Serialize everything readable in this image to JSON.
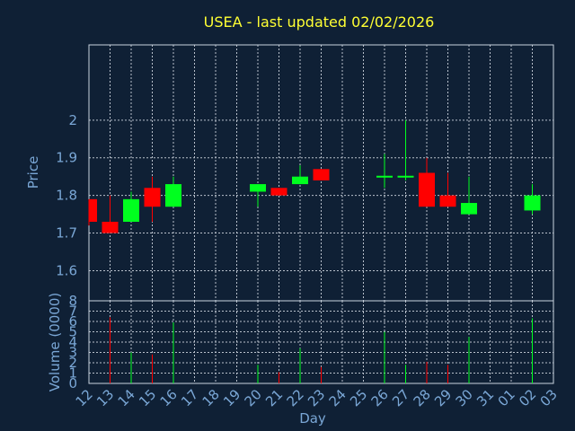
{
  "chart_data": {
    "type": "candlestick",
    "title": "USEA - last updated 02/02/2026",
    "xlabel": "Day",
    "ylabel_price": "Price",
    "ylabel_volume": "Volume (0000)",
    "x_tick_labels": [
      "12",
      "13",
      "14",
      "15",
      "16",
      "17",
      "18",
      "19",
      "20",
      "21",
      "22",
      "23",
      "24",
      "25",
      "26",
      "27",
      "28",
      "29",
      "30",
      "31",
      "01",
      "02",
      "03"
    ],
    "price_ylim": [
      1.52,
      2.2
    ],
    "price_ticks": [
      1.6,
      1.7,
      1.8,
      1.9,
      2
    ],
    "price_tick_labels": [
      "1.6",
      "1.7",
      "1.8",
      "1.9",
      "2"
    ],
    "volume_ylim": [
      0,
      8
    ],
    "volume_ticks": [
      0,
      1,
      2,
      3,
      4,
      5,
      6,
      7,
      8
    ],
    "volume_tick_labels": [
      "0",
      "1",
      "2",
      "3",
      "4",
      "5",
      "6",
      "7",
      "8"
    ],
    "grid": true,
    "colors": {
      "up": "#00ff1f",
      "down": "#ff0000",
      "background": "#0f2035",
      "grid": "#b9c1cc",
      "title": "#ffff33",
      "labels": "#7aa7d6"
    },
    "candles": [
      {
        "day": 0,
        "open": 1.79,
        "high": 1.79,
        "low": 1.72,
        "close": 1.73
      },
      {
        "day": 1,
        "open": 1.73,
        "high": 1.8,
        "low": 1.7,
        "close": 1.7
      },
      {
        "day": 2,
        "open": 1.73,
        "high": 1.81,
        "low": 1.73,
        "close": 1.79
      },
      {
        "day": 3,
        "open": 1.82,
        "high": 1.85,
        "low": 1.73,
        "close": 1.77
      },
      {
        "day": 4,
        "open": 1.77,
        "high": 1.85,
        "low": 1.77,
        "close": 1.83
      },
      {
        "day": 8,
        "open": 1.81,
        "high": 1.83,
        "low": 1.77,
        "close": 1.83
      },
      {
        "day": 9,
        "open": 1.82,
        "high": 1.82,
        "low": 1.8,
        "close": 1.8
      },
      {
        "day": 10,
        "open": 1.83,
        "high": 1.88,
        "low": 1.83,
        "close": 1.85
      },
      {
        "day": 11,
        "open": 1.87,
        "high": 1.87,
        "low": 1.84,
        "close": 1.84
      },
      {
        "day": 14,
        "open": 1.85,
        "high": 1.91,
        "low": 1.82,
        "close": 1.85
      },
      {
        "day": 15,
        "open": 1.85,
        "high": 2.0,
        "low": 1.84,
        "close": 1.85
      },
      {
        "day": 16,
        "open": 1.86,
        "high": 1.9,
        "low": 1.77,
        "close": 1.77
      },
      {
        "day": 17,
        "open": 1.8,
        "high": 1.86,
        "low": 1.77,
        "close": 1.77
      },
      {
        "day": 18,
        "open": 1.75,
        "high": 1.85,
        "low": 1.75,
        "close": 1.78
      },
      {
        "day": 21,
        "open": 1.76,
        "high": 1.83,
        "low": 1.75,
        "close": 1.8
      }
    ],
    "volume": [
      {
        "day": 1,
        "value": 6.4,
        "direction": "down"
      },
      {
        "day": 2,
        "value": 3.0,
        "direction": "up"
      },
      {
        "day": 3,
        "value": 2.8,
        "direction": "down"
      },
      {
        "day": 4,
        "value": 5.9,
        "direction": "up"
      },
      {
        "day": 8,
        "value": 1.8,
        "direction": "up"
      },
      {
        "day": 9,
        "value": 1.1,
        "direction": "down"
      },
      {
        "day": 10,
        "value": 3.4,
        "direction": "up"
      },
      {
        "day": 11,
        "value": 1.6,
        "direction": "down"
      },
      {
        "day": 14,
        "value": 5.0,
        "direction": "up"
      },
      {
        "day": 15,
        "value": 1.8,
        "direction": "up"
      },
      {
        "day": 16,
        "value": 2.1,
        "direction": "down"
      },
      {
        "day": 17,
        "value": 1.8,
        "direction": "down"
      },
      {
        "day": 18,
        "value": 4.5,
        "direction": "up"
      },
      {
        "day": 21,
        "value": 6.3,
        "direction": "up"
      }
    ]
  }
}
